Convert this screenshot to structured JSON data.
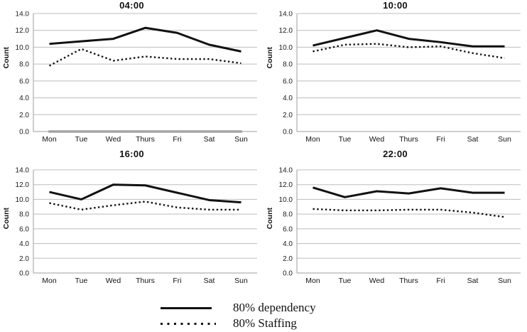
{
  "legend": {
    "items": [
      {
        "label": "80% dependency",
        "style": "solid"
      },
      {
        "label": "80% Staffing",
        "style": "dotted"
      }
    ]
  },
  "chart_data": [
    {
      "type": "line",
      "title": "04:00",
      "xlabel": "",
      "ylabel": "Count",
      "categories": [
        "Mon",
        "Tue",
        "Wed",
        "Thurs",
        "Fri",
        "Sat",
        "Sun"
      ],
      "ylim": [
        0,
        14
      ],
      "ytick": 2,
      "ytick_labels": [
        "0.0",
        "2.0",
        "4.0",
        "6.0",
        "8.0",
        "10.0",
        "12.0",
        "14.0"
      ],
      "grid": "horizontal",
      "series": [
        {
          "name": "80% dependency",
          "style": "solid",
          "values": [
            10.4,
            10.7,
            11.0,
            12.3,
            11.7,
            10.3,
            9.5
          ]
        },
        {
          "name": "80% Staffing",
          "style": "dotted",
          "values": [
            7.8,
            9.8,
            8.4,
            8.9,
            8.6,
            8.6,
            8.1
          ]
        },
        {
          "name": "zero-baseline",
          "style": "gray",
          "values": [
            0,
            0,
            0,
            0,
            0,
            0,
            0
          ]
        }
      ]
    },
    {
      "type": "line",
      "title": "10:00",
      "xlabel": "",
      "ylabel": "Count",
      "categories": [
        "Mon",
        "Tue",
        "Wed",
        "Thurs",
        "Fri",
        "Sat",
        "Sun"
      ],
      "ylim": [
        0,
        14
      ],
      "ytick": 2,
      "ytick_labels": [
        "0.0",
        "2.0",
        "4.0",
        "6.0",
        "8.0",
        "10.0",
        "12.0",
        "14.0"
      ],
      "grid": "horizontal",
      "series": [
        {
          "name": "80% dependency",
          "style": "solid",
          "values": [
            10.2,
            11.1,
            12.0,
            11.0,
            10.6,
            10.1,
            10.1
          ]
        },
        {
          "name": "80% Staffing",
          "style": "dotted",
          "values": [
            9.5,
            10.3,
            10.4,
            10.0,
            10.1,
            9.3,
            8.7
          ]
        }
      ]
    },
    {
      "type": "line",
      "title": "16:00",
      "xlabel": "",
      "ylabel": "Count",
      "categories": [
        "Mon",
        "Tue",
        "Wed",
        "Thurs",
        "Fri",
        "Sat",
        "Sun"
      ],
      "ylim": [
        0,
        14
      ],
      "ytick": 2,
      "ytick_labels": [
        "0.0",
        "2.0",
        "4.0",
        "6.0",
        "8.0",
        "10.0",
        "12.0",
        "14.0"
      ],
      "grid": "horizontal",
      "series": [
        {
          "name": "80% dependency",
          "style": "solid",
          "values": [
            11.0,
            10.0,
            12.0,
            11.9,
            10.9,
            9.9,
            9.6
          ]
        },
        {
          "name": "80% Staffing",
          "style": "dotted",
          "values": [
            9.5,
            8.6,
            9.2,
            9.7,
            8.9,
            8.6,
            8.6
          ]
        }
      ]
    },
    {
      "type": "line",
      "title": "22:00",
      "xlabel": "",
      "ylabel": "Count",
      "categories": [
        "Mon",
        "Tue",
        "Wed",
        "Thurs",
        "Fri",
        "Sat",
        "Sun"
      ],
      "ylim": [
        0,
        14
      ],
      "ytick": 2,
      "ytick_labels": [
        "0.0",
        "2.0",
        "4.0",
        "6.0",
        "8.0",
        "10.0",
        "12.0",
        "14.0"
      ],
      "grid": "horizontal",
      "series": [
        {
          "name": "80% dependency",
          "style": "solid",
          "values": [
            11.6,
            10.3,
            11.1,
            10.8,
            11.5,
            10.9,
            10.9
          ]
        },
        {
          "name": "80% Staffing",
          "style": "dotted",
          "values": [
            8.7,
            8.5,
            8.5,
            8.6,
            8.6,
            8.2,
            7.6
          ]
        }
      ]
    }
  ]
}
